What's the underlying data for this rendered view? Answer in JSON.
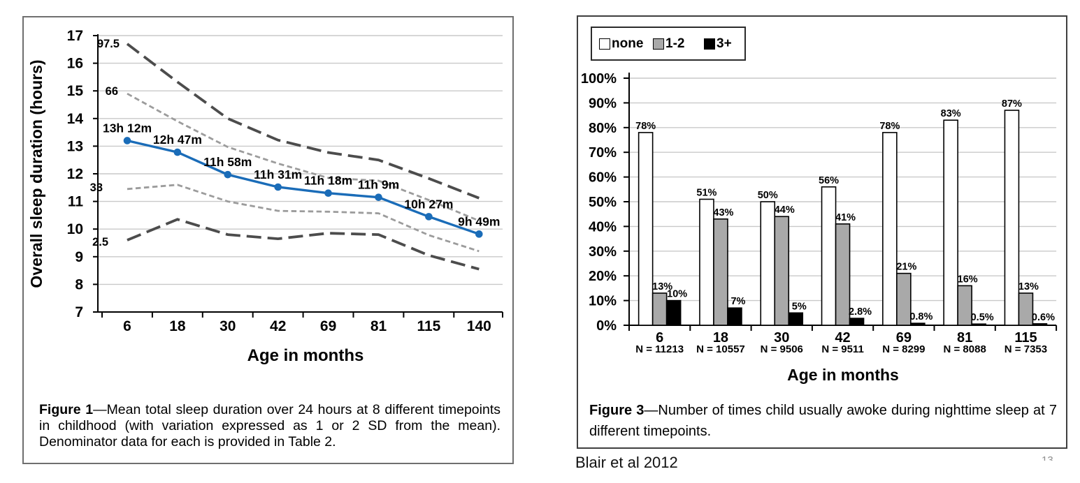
{
  "attribution": "Blair et al 2012",
  "page_number": "13",
  "figure1": {
    "caption_label": "Figure 1",
    "caption_text": "—Mean total sleep duration over 24 hours at 8 different timepoints in childhood (with variation expressed as 1 or 2 SD from the mean). Denominator data for each is provided in Table 2."
  },
  "figure3": {
    "caption_label": "Figure 3",
    "caption_text": "—Number of times child usually awoke during nighttime sleep at 7 different timepoints.",
    "legend": [
      {
        "label": "none",
        "color": "#ffffff"
      },
      {
        "label": "1-2",
        "color": "#a9a9a9"
      },
      {
        "label": "3+",
        "color": "#000000"
      }
    ]
  },
  "chart_data": [
    {
      "type": "line",
      "title": "",
      "xlabel": "Age in months",
      "ylabel": "Overall sleep duration (hours)",
      "categories": [
        "6",
        "18",
        "30",
        "42",
        "69",
        "81",
        "115",
        "140"
      ],
      "ylim": [
        7,
        17
      ],
      "ytick_step": 1,
      "grid": true,
      "series": [
        {
          "name": "97.5",
          "role": "percentile",
          "dash": "long",
          "color": "#4c4c4c",
          "values": [
            16.7,
            15.32,
            14.0,
            13.22,
            12.77,
            12.5,
            11.83,
            11.12
          ]
        },
        {
          "name": "66",
          "role": "percentile",
          "dash": "short",
          "color": "#9c9c9c",
          "values": [
            14.9,
            13.9,
            12.97,
            12.37,
            11.85,
            11.75,
            11.05,
            10.3
          ]
        },
        {
          "name": "mean",
          "role": "mean",
          "dash": "solid",
          "color": "#1a6cb8",
          "values": [
            13.2,
            12.78,
            11.97,
            11.52,
            11.3,
            11.15,
            10.45,
            9.82
          ],
          "point_labels": [
            "13h 12m",
            "12h 47m",
            "11h 58m",
            "11h 31m",
            "11h 18m",
            "11h 9m",
            "10h 27m",
            "9h 49m"
          ]
        },
        {
          "name": "33",
          "role": "percentile",
          "dash": "short",
          "color": "#9c9c9c",
          "values": [
            11.45,
            11.6,
            11.0,
            10.66,
            10.63,
            10.57,
            9.78,
            9.2
          ]
        },
        {
          "name": "2.5",
          "role": "percentile",
          "dash": "long",
          "color": "#4c4c4c",
          "values": [
            9.6,
            10.35,
            9.8,
            9.65,
            9.85,
            9.8,
            9.05,
            8.55
          ]
        }
      ]
    },
    {
      "type": "bar",
      "title": "",
      "xlabel": "Age in months",
      "ylabel": "",
      "ylim": [
        0,
        100
      ],
      "ytick_step": 10,
      "ytick_suffix": "%",
      "grid": true,
      "legend_position": "top-left",
      "categories": [
        "6",
        "18",
        "30",
        "42",
        "69",
        "81",
        "115"
      ],
      "category_sublabels": [
        "N = 11213",
        "N = 10557",
        "N = 9506",
        "N = 9511",
        "N = 8299",
        "N = 8088",
        "N = 7353"
      ],
      "series": [
        {
          "name": "none",
          "color": "#ffffff",
          "values": [
            78,
            51,
            50,
            56,
            78,
            83,
            87
          ],
          "value_labels": [
            "78%",
            "51%",
            "50%",
            "56%",
            "78%",
            "83%",
            "87%"
          ]
        },
        {
          "name": "1-2",
          "color": "#a9a9a9",
          "values": [
            13,
            43,
            44,
            41,
            21,
            16,
            13
          ],
          "value_labels": [
            "13%",
            "43%",
            "44%",
            "41%",
            "21%",
            "16%",
            "13%"
          ]
        },
        {
          "name": "3+",
          "color": "#000000",
          "values": [
            10,
            7,
            5,
            2.8,
            0.8,
            0.5,
            0.6
          ],
          "value_labels": [
            "10%",
            "7%",
            "5%",
            "2.8%",
            "0.8%",
            "0.5%",
            "0.6%"
          ]
        }
      ]
    }
  ]
}
